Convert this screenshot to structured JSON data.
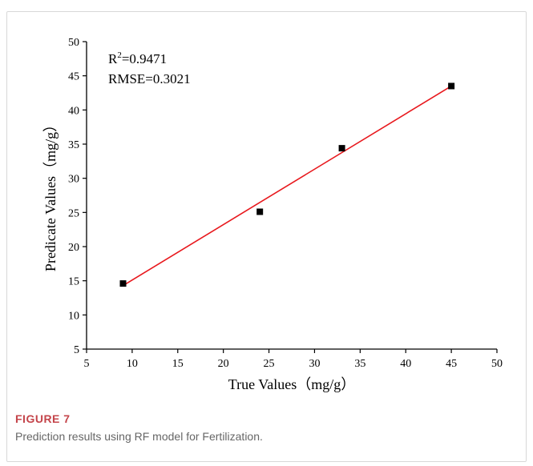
{
  "figure": {
    "label": "FIGURE 7",
    "caption": "Prediction results using RF model for Fertilization."
  },
  "chart_data": {
    "type": "scatter",
    "title": "",
    "xlabel": "True Values（mg/g）",
    "ylabel": "Predicate Values（mg/g）",
    "xlim": [
      5,
      50
    ],
    "ylim": [
      5,
      50
    ],
    "xticks": [
      5,
      10,
      15,
      20,
      25,
      30,
      35,
      40,
      45,
      50
    ],
    "yticks": [
      5,
      10,
      15,
      20,
      25,
      30,
      35,
      40,
      45,
      50
    ],
    "grid": false,
    "legend": "none",
    "points": [
      {
        "x": 9,
        "y": 14.6
      },
      {
        "x": 24,
        "y": 25.1
      },
      {
        "x": 33,
        "y": 34.4
      },
      {
        "x": 45,
        "y": 43.5
      }
    ],
    "fit_line": {
      "x": [
        9,
        45
      ],
      "y": [
        14.3,
        43.5
      ],
      "color": "#e8181d"
    },
    "marker_color": "#000000",
    "annotations": {
      "r2_prefix": "R",
      "r2_sup": "2",
      "r2_value": "=0.9471",
      "rmse": "RMSE=0.3021"
    }
  }
}
